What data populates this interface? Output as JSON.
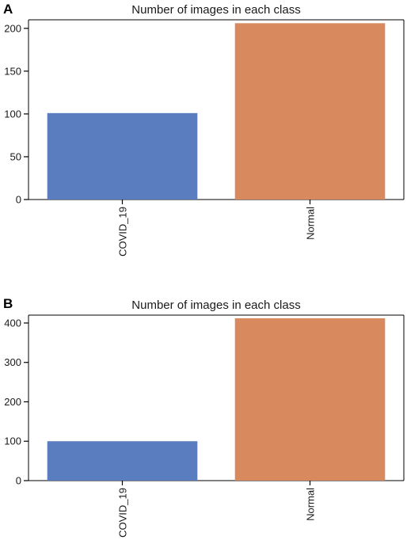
{
  "panels": [
    {
      "letter": "A"
    },
    {
      "letter": "B"
    }
  ],
  "chart_data": [
    {
      "type": "bar",
      "title": "Number of images in each class",
      "categories": [
        "COVID_19",
        "Normal"
      ],
      "values": [
        101,
        206
      ],
      "colors": [
        "#5a7dc0",
        "#d88a5e"
      ],
      "ylim": [
        0,
        210
      ],
      "yticks": [
        0,
        50,
        100,
        150,
        200
      ],
      "xlabel": "",
      "ylabel": "",
      "grid": false
    },
    {
      "type": "bar",
      "title": "Number of images in each class",
      "categories": [
        "COVID_19",
        "Normal"
      ],
      "values": [
        100,
        412
      ],
      "colors": [
        "#5a7dc0",
        "#d88a5e"
      ],
      "ylim": [
        0,
        420
      ],
      "yticks": [
        0,
        100,
        200,
        300,
        400
      ],
      "xlabel": "",
      "ylabel": "",
      "grid": false
    }
  ]
}
